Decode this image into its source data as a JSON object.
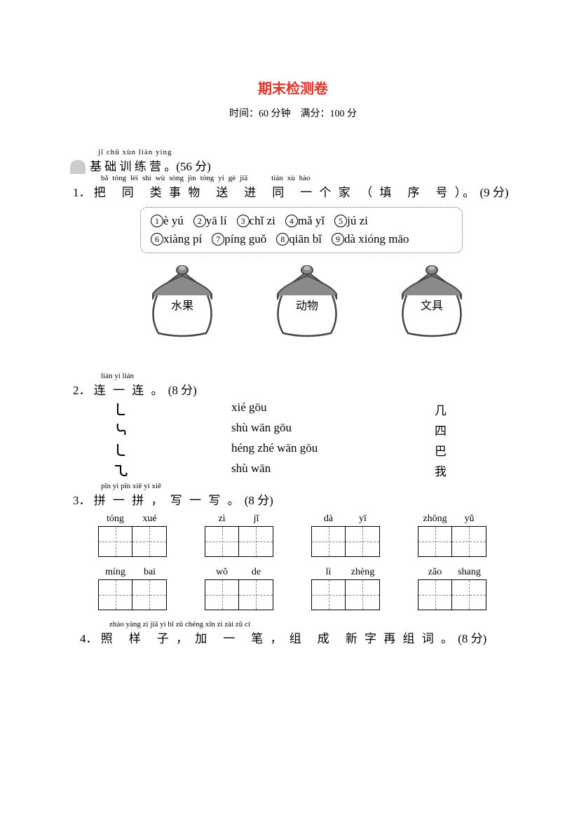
{
  "title": "期末检测卷",
  "subtitle": "时间：60 分钟　满分：100 分",
  "section1": {
    "pinyin": "jī   chǔ xùn liàn yíng",
    "hanzi": "基 础 训 练 营 。",
    "points": "(56 分)"
  },
  "q1": {
    "num": "1．",
    "pinyin": [
      "bǎ",
      "tóng",
      "lèi",
      "shì",
      "wù",
      "sòng",
      "jìn",
      "tóng",
      "yí",
      "gè",
      "jiā",
      "",
      "tián",
      "xù",
      "hào"
    ],
    "hanzi": "把　同　类 事 物　送　进　同　一 个 家　（ 填　序　号 ）。",
    "points": "(9 分)",
    "options": [
      {
        "n": "1",
        "t": "è yú"
      },
      {
        "n": "2",
        "t": "yā lí"
      },
      {
        "n": "3",
        "t": "chǐ zi"
      },
      {
        "n": "4",
        "t": "mǎ yǐ"
      },
      {
        "n": "5",
        "t": "jú zi"
      },
      {
        "n": "6",
        "t": "xiàng pí"
      },
      {
        "n": "7",
        "t": "píng guǒ"
      },
      {
        "n": "8",
        "t": "qiān bǐ"
      },
      {
        "n": "9",
        "t": "dà xióng māo"
      }
    ],
    "houses": [
      "水果",
      "动物",
      "文具"
    ]
  },
  "q2": {
    "num": "2．",
    "pinyin": "lián  yi  lián",
    "hanzi": "连 一 连 。",
    "points": "(8 分)",
    "rows": [
      {
        "mid": "xié gōu",
        "right": "几"
      },
      {
        "mid": "shù wān gōu",
        "right": "四"
      },
      {
        "mid": "héng zhé wān gōu",
        "right": "巴"
      },
      {
        "mid": "shù wān",
        "right": "我"
      }
    ]
  },
  "q3": {
    "num": "3．",
    "pinyin": "pīn  yi  pīn     xiě  yi  xiě",
    "hanzi": "拼 一 拼 ， 写 一 写 。",
    "points": "(8 分)",
    "row1": [
      [
        "tóng",
        "xué"
      ],
      [
        "zì",
        "jǐ"
      ],
      [
        "dà",
        "yī"
      ],
      [
        "zhōng",
        "yǔ"
      ]
    ],
    "row2": [
      [
        "míng",
        "bai"
      ],
      [
        "wǒ",
        "de"
      ],
      [
        "lì",
        "zhèng"
      ],
      [
        "zǎo",
        "shang"
      ]
    ]
  },
  "q4": {
    "num": "4．",
    "pinyin": " zhào yàng  zi       jiā   yì   bǐ      zǔ  chéng xīn  zì  zài zǔ  cí",
    "hanzi": " 照　样　子 ， 加　一　笔 ， 组　成　新 字 再 组 词 。",
    "points": "(8 分)"
  }
}
